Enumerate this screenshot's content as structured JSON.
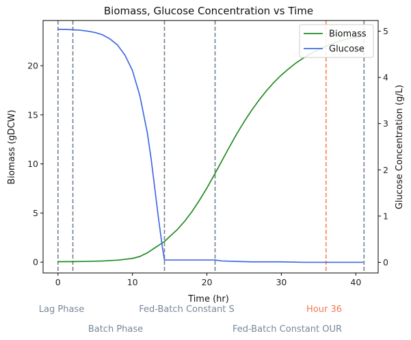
{
  "chart_data": {
    "type": "line",
    "title": "Biomass, Glucose Concentration vs Time",
    "xlabel": "Time (hr)",
    "ylabel_left": "Biomass (gDCW)",
    "ylabel_right": "Glucose Concentration (g/L)",
    "xlim": [
      -2,
      43
    ],
    "ylim_left": [
      -1.1,
      24.6
    ],
    "ylim_right": [
      -0.23,
      5.23
    ],
    "x_ticks": [
      0,
      10,
      20,
      30,
      40
    ],
    "y_left_ticks": [
      0,
      5,
      10,
      15,
      20
    ],
    "y_right_ticks": [
      0,
      1,
      2,
      3,
      4,
      5
    ],
    "legend_position": "top-right",
    "series": [
      {
        "name": "Biomass",
        "axis": "left",
        "color": "#228B22",
        "x": [
          0,
          2,
          4,
          6,
          8,
          10,
          11,
          12,
          13,
          14,
          14.3,
          15,
          16,
          17,
          18,
          19,
          20,
          21,
          22,
          23,
          24,
          25,
          26,
          27,
          28,
          29,
          30,
          31,
          32,
          33,
          34,
          35,
          36,
          37,
          38,
          39,
          40,
          41
        ],
        "y": [
          0.05,
          0.06,
          0.08,
          0.12,
          0.2,
          0.38,
          0.58,
          0.95,
          1.45,
          1.95,
          2.1,
          2.6,
          3.3,
          4.15,
          5.15,
          6.3,
          7.55,
          8.9,
          10.3,
          11.7,
          13.05,
          14.3,
          15.45,
          16.5,
          17.45,
          18.3,
          19.05,
          19.7,
          20.3,
          20.8,
          21.25,
          21.65,
          22.0,
          22.3,
          22.55,
          22.75,
          22.9,
          23.0
        ]
      },
      {
        "name": "Glucose",
        "axis": "right",
        "color": "#4169E1",
        "x": [
          0,
          1,
          2,
          3,
          4,
          5,
          6,
          7,
          8,
          9,
          10,
          11,
          12,
          12.5,
          13,
          13.5,
          14,
          14.3,
          14.31,
          15,
          17,
          19,
          21,
          21.1,
          22,
          24,
          26,
          28,
          30,
          33,
          36,
          38,
          41
        ],
        "y": [
          5.04,
          5.04,
          5.03,
          5.02,
          5.0,
          4.97,
          4.92,
          4.83,
          4.7,
          4.48,
          4.15,
          3.6,
          2.8,
          2.25,
          1.6,
          0.95,
          0.35,
          0.05,
          0.05,
          0.05,
          0.05,
          0.05,
          0.05,
          0.05,
          0.03,
          0.02,
          0.01,
          0.01,
          0.01,
          0.0,
          0.0,
          0.0,
          0.0
        ]
      }
    ],
    "phase_markers": [
      {
        "x": 0,
        "color": "#708090"
      },
      {
        "x": 2,
        "color": "#708090"
      },
      {
        "x": 14.3,
        "color": "#708090"
      },
      {
        "x": 21.1,
        "color": "#708090"
      },
      {
        "x": 36,
        "color": "#FF7F50"
      },
      {
        "x": 41.1,
        "color": "#708090"
      }
    ],
    "phase_labels": [
      {
        "text": "Lag Phase",
        "color": "#778899"
      },
      {
        "text": "Batch Phase",
        "color": "#778899"
      },
      {
        "text": "Fed-Batch Constant S",
        "color": "#778899"
      },
      {
        "text": "Fed-Batch Constant OUR",
        "color": "#778899"
      },
      {
        "text": "Hour 36",
        "color": "#F07850"
      }
    ]
  }
}
